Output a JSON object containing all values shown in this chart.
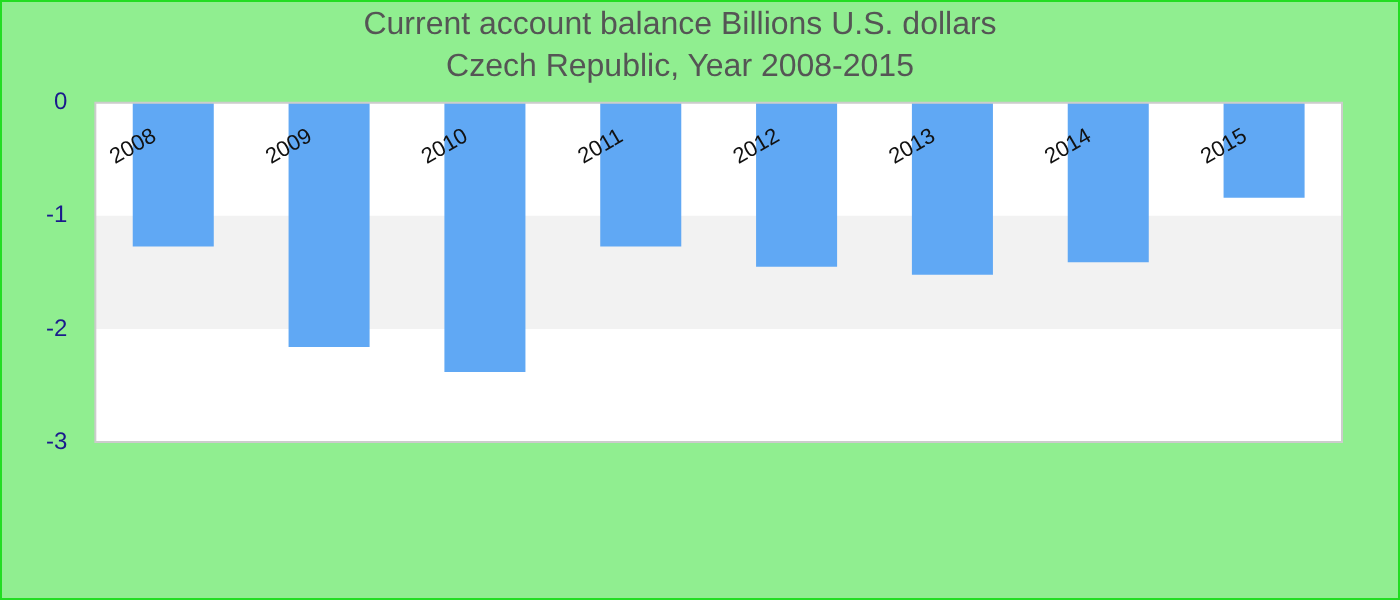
{
  "chart_data": {
    "type": "bar",
    "title": "Current account balance Billions U.S. dollars",
    "subtitle": "Czech Republic, Year 2008-2015",
    "categories": [
      "2008",
      "2009",
      "2010",
      "2011",
      "2012",
      "2013",
      "2014",
      "2015"
    ],
    "values": [
      -1.27,
      -2.16,
      -2.38,
      -1.27,
      -1.45,
      -1.52,
      -1.41,
      -0.84
    ],
    "color": "#60a8f4",
    "ylim": [
      -3,
      0
    ],
    "yticks": [
      -3,
      -2,
      -1,
      0
    ],
    "grid": false,
    "bands": [
      {
        "axis": "y",
        "from": -2,
        "to": -1,
        "color": "#f2f2f2"
      }
    ]
  }
}
